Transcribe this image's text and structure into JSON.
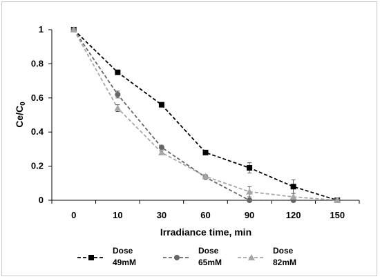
{
  "chart_data": {
    "type": "line",
    "categories": [
      "0",
      "10",
      "30",
      "60",
      "90",
      "120",
      "150"
    ],
    "xlabel": "Irradiance time, min",
    "ylabel_main": "Ce/C",
    "ylabel_sub": "0",
    "ylim": [
      0,
      1
    ],
    "yticks": [
      "0",
      "0.2",
      "0.4",
      "0.6",
      "0.8",
      "1"
    ],
    "grid": false,
    "legend_position": "bottom",
    "series": [
      {
        "name": "Dose 49mM",
        "label_line1": "Dose",
        "label_line2": "49mM",
        "values": [
          1.0,
          0.75,
          0.56,
          0.28,
          0.19,
          0.08,
          0.0
        ],
        "errors": [
          0.0,
          0.01,
          0.01,
          0.01,
          0.03,
          0.04,
          0.0
        ],
        "color": "#000000",
        "marker": "square"
      },
      {
        "name": "Dose 65mM",
        "label_line1": "Dose",
        "label_line2": "65mM",
        "values": [
          1.0,
          0.62,
          0.31,
          0.135,
          0.0,
          0.0,
          0.0
        ],
        "errors": [
          0.0,
          0.02,
          0.01,
          0.01,
          0.0,
          0.0,
          0.0
        ],
        "color": "#666666",
        "marker": "circle"
      },
      {
        "name": "Dose 82mM",
        "label_line1": "Dose",
        "label_line2": "82mM",
        "values": [
          1.0,
          0.54,
          0.28,
          0.14,
          0.05,
          0.02,
          0.0
        ],
        "errors": [
          0.0,
          0.02,
          0.01,
          0.01,
          0.03,
          0.02,
          0.0
        ],
        "color": "#a6a6a6",
        "marker": "triangle"
      }
    ]
  }
}
